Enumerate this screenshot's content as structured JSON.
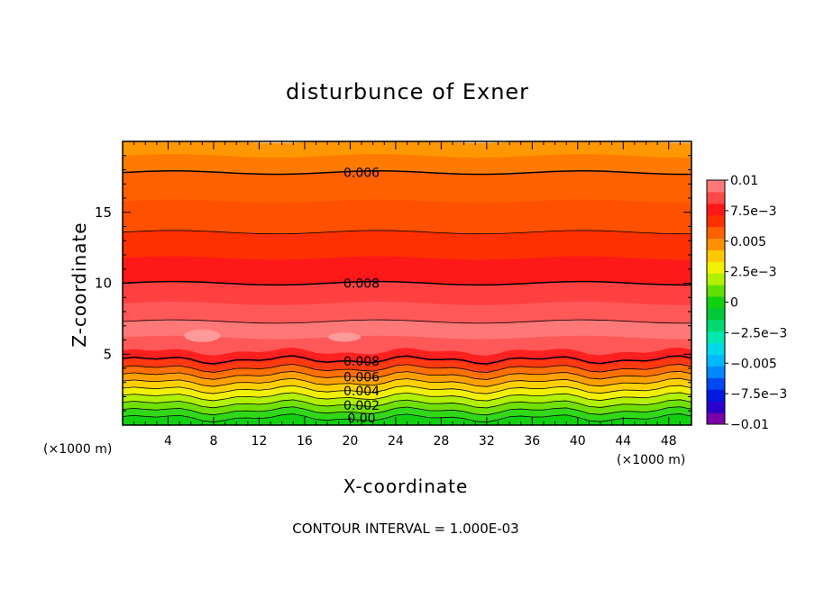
{
  "chart_data": {
    "type": "contour",
    "title": "disturbunce of Exner",
    "xlabel": "X-coordinate",
    "ylabel": "Z-coordinate",
    "x_unit_label": "(×1000 m)",
    "y_unit_label": "(×1000 m)",
    "xlim": [
      0,
      50
    ],
    "ylim": [
      0,
      20
    ],
    "x_ticks": [
      4,
      8,
      12,
      16,
      20,
      24,
      28,
      32,
      36,
      40,
      44,
      48
    ],
    "y_ticks": [
      5,
      10,
      15
    ],
    "contour_interval_text": "CONTOUR INTERVAL = 1.000E-03",
    "colorbar": {
      "range": [
        -0.01,
        0.01
      ],
      "tick_labels": [
        "0.01",
        "7.5e−3",
        "0.005",
        "2.5e−3",
        "0",
        "−2.5e−3",
        "−0.005",
        "−7.5e−3",
        "−0.01"
      ],
      "tick_values": [
        0.01,
        0.0075,
        0.005,
        0.0025,
        0,
        -0.0025,
        -0.005,
        -0.0075,
        -0.01
      ],
      "colors": [
        "#7a00aa",
        "#2a00cc",
        "#0018e0",
        "#0048f0",
        "#0088ff",
        "#00b8ff",
        "#00d8e8",
        "#00e8b0",
        "#00d870",
        "#00c838",
        "#10d010",
        "#60e000",
        "#b0f000",
        "#f0f000",
        "#ffc800",
        "#ff9000",
        "#ff6000",
        "#ff3000",
        "#ff1818",
        "#ff4848",
        "#ff7878"
      ]
    },
    "contour_labels": [
      {
        "text": "0.006",
        "x": 21,
        "z": 17.8
      },
      {
        "text": "0.008",
        "x": 21,
        "z": 10.0
      },
      {
        "text": "0.008",
        "x": 21,
        "z": 4.5
      },
      {
        "text": "0.006",
        "x": 21,
        "z": 3.4
      },
      {
        "text": "0.004",
        "x": 21,
        "z": 2.4
      },
      {
        "text": "0.002",
        "x": 21,
        "z": 1.4
      },
      {
        "text": "0.00",
        "x": 21,
        "z": 0.5
      }
    ],
    "grid": false
  }
}
